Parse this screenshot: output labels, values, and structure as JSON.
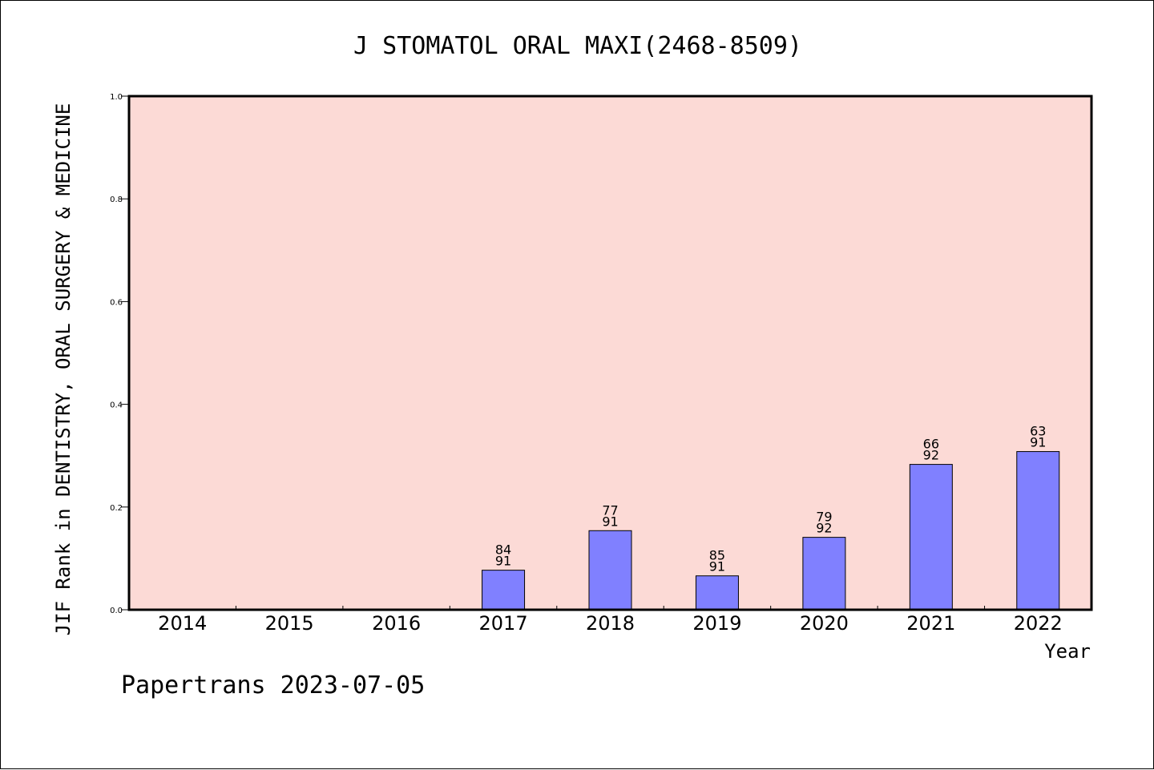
{
  "chart_data": {
    "type": "bar",
    "title": "J STOMATOL ORAL MAXI(2468-8509)",
    "xlabel": "Year",
    "ylabel": "JIF Rank in DENTISTRY, ORAL SURGERY & MEDICINE",
    "ylim": [
      0,
      1.0
    ],
    "yticks": [
      "0.0",
      "0.2",
      "0.4",
      "0.6",
      "0.8",
      "1.0"
    ],
    "categories": [
      "2014",
      "2015",
      "2016",
      "2017",
      "2018",
      "2019",
      "2020",
      "2021",
      "2022"
    ],
    "values": [
      null,
      null,
      null,
      0.077,
      0.154,
      0.066,
      0.141,
      0.283,
      0.308
    ],
    "bar_labels": [
      null,
      null,
      null,
      {
        "top": "84",
        "bottom": "91"
      },
      {
        "top": "77",
        "bottom": "91"
      },
      {
        "top": "85",
        "bottom": "91"
      },
      {
        "top": "79",
        "bottom": "92"
      },
      {
        "top": "66",
        "bottom": "92"
      },
      {
        "top": "63",
        "bottom": "91"
      }
    ],
    "grid": false,
    "legend": "none",
    "colors": {
      "plot_background": "#fcdad6",
      "bar_fill": "#8080ff",
      "bar_stroke": "#000000"
    }
  },
  "footer": {
    "text": "Papertrans 2023-07-05"
  }
}
